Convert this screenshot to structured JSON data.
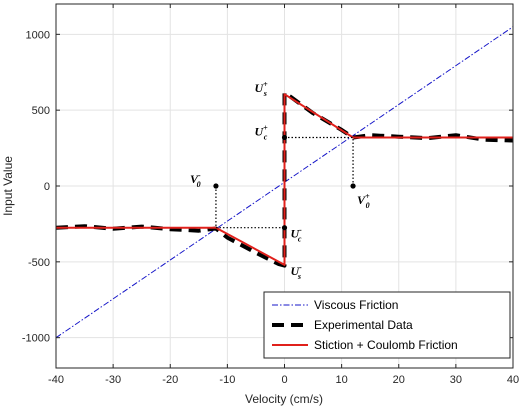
{
  "chart_data": {
    "type": "line",
    "xlabel": "Velocity (cm/s)",
    "ylabel": "Input Value",
    "xlim": [
      -40,
      40
    ],
    "ylim": [
      -1200,
      1200
    ],
    "x_ticks": [
      -40,
      -30,
      -20,
      -10,
      0,
      10,
      20,
      30,
      40
    ],
    "y_ticks": [
      -1000,
      -500,
      0,
      500,
      1000
    ],
    "grid": true,
    "legend_position": "bottom-right",
    "series": [
      {
        "name": "Viscous Friction",
        "style": "dash-dot",
        "color": "#1515c8",
        "x": [
          -40,
          40
        ],
        "y": [
          -1000,
          1050
        ]
      },
      {
        "name": "Experimental Data",
        "style": "dashed-thick",
        "color": "#000000",
        "x": [
          -40,
          -35,
          -30,
          -25,
          -20,
          -15,
          -12,
          -10,
          -5,
          -1,
          0,
          0,
          1,
          5,
          10,
          12,
          15,
          20,
          25,
          30,
          35,
          40
        ],
        "y": [
          -275,
          -265,
          -282,
          -268,
          -285,
          -295,
          -280,
          -340,
          -440,
          -515,
          -525,
          615,
          590,
          480,
          370,
          320,
          335,
          325,
          315,
          335,
          305,
          300
        ]
      },
      {
        "name": "Stiction + Coulomb Friction",
        "style": "solid",
        "color": "#e0201b",
        "x": [
          -40,
          -12,
          0,
          0,
          12,
          40
        ],
        "y": [
          -275,
          -275,
          -520,
          605,
          320,
          320
        ]
      }
    ],
    "reference_lines": [
      {
        "x": [
          -12,
          0
        ],
        "y": [
          -275,
          -275
        ]
      },
      {
        "x": [
          0,
          12
        ],
        "y": [
          320,
          320
        ]
      },
      {
        "x": [
          -12,
          -12
        ],
        "y": [
          0,
          -275
        ]
      },
      {
        "x": [
          12,
          12
        ],
        "y": [
          0,
          320
        ]
      }
    ],
    "markers": [
      {
        "x": -12,
        "y": 0
      },
      {
        "x": 12,
        "y": 0
      },
      {
        "x": 0,
        "y": 320
      },
      {
        "x": 0,
        "y": -275
      }
    ],
    "annotations": [
      {
        "base": "U",
        "sup": "+",
        "sub": "s",
        "x": 0,
        "y": 605,
        "anchor": "left"
      },
      {
        "base": "U",
        "sup": "+",
        "sub": "c",
        "x": 0,
        "y": 320,
        "anchor": "left"
      },
      {
        "base": "V",
        "sup": "-",
        "sub": "0",
        "x": -12,
        "y": 0,
        "anchor": "left"
      },
      {
        "base": "V",
        "sup": "+",
        "sub": "0",
        "x": 12,
        "y": 0,
        "anchor": "below"
      },
      {
        "base": "U",
        "sup": "-",
        "sub": "c",
        "x": 0,
        "y": -275,
        "anchor": "right"
      },
      {
        "base": "U",
        "sup": "-",
        "sub": "s",
        "x": 0,
        "y": -520,
        "anchor": "right"
      }
    ]
  }
}
